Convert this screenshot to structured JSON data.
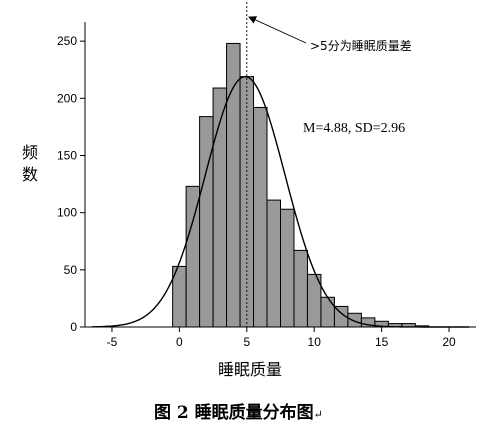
{
  "chart_data": {
    "type": "bar",
    "xlabel": "睡眠质量",
    "ylabel_chars": [
      "频",
      "数"
    ],
    "xlim": [
      -7,
      22
    ],
    "ylim": [
      0,
      265
    ],
    "xticks": [
      "-5",
      "0",
      "5",
      "10",
      "15",
      "20"
    ],
    "xtick_values": [
      -5,
      0,
      5,
      10,
      15,
      20
    ],
    "yticks": [
      "0",
      "50",
      "100",
      "150",
      "200",
      "250"
    ],
    "ytick_values": [
      0,
      50,
      100,
      150,
      200,
      250
    ],
    "bins": [
      {
        "from": -0.5,
        "to": 0.5,
        "value": 53
      },
      {
        "from": 0.5,
        "to": 1.5,
        "value": 123
      },
      {
        "from": 1.5,
        "to": 2.5,
        "value": 184
      },
      {
        "from": 2.5,
        "to": 3.5,
        "value": 209
      },
      {
        "from": 3.5,
        "to": 4.5,
        "value": 248
      },
      {
        "from": 4.5,
        "to": 5.5,
        "value": 219
      },
      {
        "from": 5.5,
        "to": 6.5,
        "value": 192
      },
      {
        "from": 6.5,
        "to": 7.5,
        "value": 111
      },
      {
        "from": 7.5,
        "to": 8.5,
        "value": 103
      },
      {
        "from": 8.5,
        "to": 9.5,
        "value": 67
      },
      {
        "from": 9.5,
        "to": 10.5,
        "value": 46
      },
      {
        "from": 10.5,
        "to": 11.5,
        "value": 26
      },
      {
        "from": 11.5,
        "to": 12.5,
        "value": 18
      },
      {
        "from": 12.5,
        "to": 13.5,
        "value": 12
      },
      {
        "from": 13.5,
        "to": 14.5,
        "value": 8
      },
      {
        "from": 14.5,
        "to": 15.5,
        "value": 5
      },
      {
        "from": 15.5,
        "to": 16.5,
        "value": 3
      },
      {
        "from": 16.5,
        "to": 17.5,
        "value": 3
      },
      {
        "from": 17.5,
        "to": 18.5,
        "value": 1
      }
    ],
    "normal_curve": {
      "mean": 4.88,
      "sd": 2.96,
      "peak": 219
    },
    "threshold": {
      "x": 5,
      "label": ">5分为睡眠质量差"
    },
    "stats_label": "M=4.88, SD=2.96",
    "caption": "图 2 睡眠质量分布图",
    "caption_mark": "↵"
  }
}
